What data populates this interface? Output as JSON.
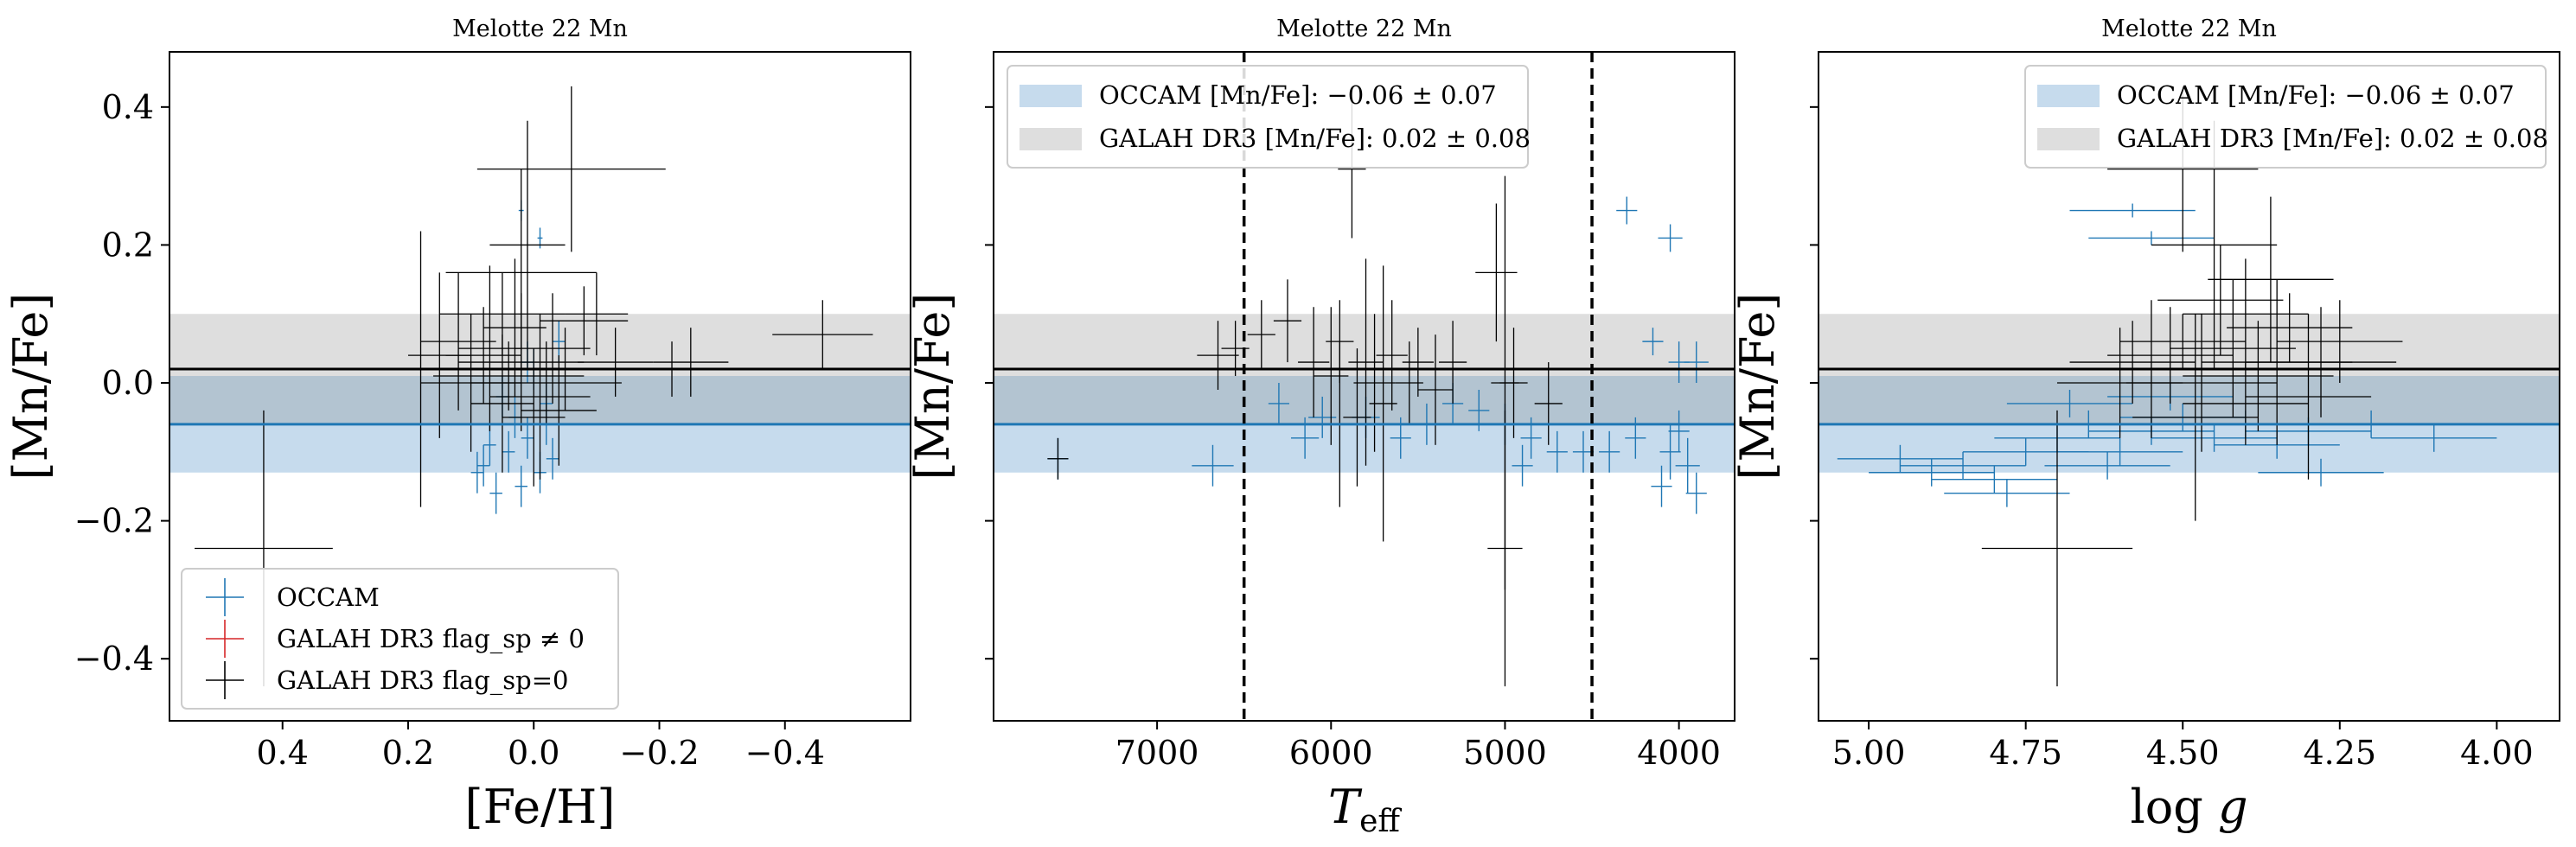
{
  "colors": {
    "occam": "#1f77b4",
    "occam_band": "#c6dbed",
    "galah_band": "#dedede",
    "overlap_band": "#b3c4d1",
    "galah_flag": "#d62728",
    "galah": "#000000"
  },
  "chart_data": [
    {
      "type": "scatter",
      "title": "Melotte 22 Mn",
      "xlabel": "[Fe/H]",
      "ylabel": "[Mn/Fe]",
      "xlim": [
        0.58,
        -0.6
      ],
      "ylim": [
        -0.49,
        0.48
      ],
      "xticks": [
        0.4,
        0.2,
        0.0,
        -0.2,
        -0.4
      ],
      "xtick_labels": [
        "0.4",
        "0.2",
        "0.0",
        "−0.2",
        "−0.4"
      ],
      "yticks": [
        0.4,
        0.2,
        0.0,
        -0.2,
        -0.4
      ],
      "ytick_labels": [
        "0.4",
        "0.2",
        "0.0",
        "−0.2",
        "−0.4"
      ],
      "yticklabels_visible": true,
      "bands": [
        {
          "name": "GALAH DR3",
          "center": 0.02,
          "err": 0.08
        },
        {
          "name": "OCCAM",
          "center": -0.06,
          "err": 0.07
        }
      ],
      "vlines": [],
      "legend": {
        "placement": "lower-left",
        "entries": [
          {
            "type": "marker",
            "color": "occam",
            "label": "OCCAM"
          },
          {
            "type": "marker",
            "color": "galah_flag",
            "label": "GALAH DR3 flag_sp ≠ 0"
          },
          {
            "type": "marker",
            "color": "galah",
            "label": "GALAH DR3 flag_sp=0"
          }
        ]
      },
      "series": [
        {
          "name": "OCCAM",
          "color": "occam",
          "points": [
            [
              0.02,
              0.25,
              0.004,
              0.015
            ],
            [
              -0.01,
              0.21,
              0.004,
              0.015
            ],
            [
              0.08,
              -0.12,
              0.01,
              0.03
            ],
            [
              0.06,
              -0.16,
              0.01,
              0.03
            ],
            [
              0.04,
              -0.1,
              0.01,
              0.03
            ],
            [
              0.03,
              -0.05,
              0.01,
              0.03
            ],
            [
              0.01,
              -0.08,
              0.01,
              0.03
            ],
            [
              -0.01,
              -0.13,
              0.01,
              0.03
            ],
            [
              -0.02,
              -0.06,
              0.01,
              0.03
            ],
            [
              -0.03,
              -0.11,
              0.01,
              0.03
            ],
            [
              0.05,
              -0.02,
              0.01,
              0.03
            ],
            [
              0.0,
              0.02,
              0.01,
              0.03
            ],
            [
              0.02,
              -0.15,
              0.01,
              0.03
            ],
            [
              -0.04,
              0.06,
              0.01,
              0.03
            ],
            [
              0.07,
              -0.09,
              0.01,
              0.03
            ],
            [
              0.09,
              -0.13,
              0.01,
              0.03
            ],
            [
              -0.02,
              -0.03,
              0.01,
              0.03
            ],
            [
              0.01,
              0.03,
              0.01,
              0.03
            ]
          ]
        },
        {
          "name": "GALAH DR3 flag_sp=0",
          "color": "galah",
          "points": [
            [
              0.43,
              -0.24,
              0.11,
              0.2
            ],
            [
              0.18,
              0.02,
              0.06,
              0.2
            ],
            [
              0.15,
              0.04,
              0.05,
              0.12
            ],
            [
              0.1,
              0.0,
              0.08,
              0.1
            ],
            [
              0.05,
              0.1,
              0.1,
              0.06
            ],
            [
              0.02,
              0.16,
              0.12,
              0.15
            ],
            [
              -0.06,
              0.31,
              0.15,
              0.12
            ],
            [
              0.01,
              0.2,
              0.06,
              0.18
            ],
            [
              0.02,
              0.03,
              0.1,
              0.1
            ],
            [
              -0.01,
              -0.02,
              0.08,
              0.12
            ],
            [
              -0.03,
              0.05,
              0.06,
              0.08
            ],
            [
              0.0,
              -0.05,
              0.05,
              0.1
            ],
            [
              -0.02,
              0.0,
              0.12,
              0.06
            ],
            [
              0.04,
              0.01,
              0.12,
              0.05
            ],
            [
              0.07,
              0.05,
              0.05,
              0.12
            ],
            [
              -0.08,
              0.09,
              0.07,
              0.05
            ],
            [
              -0.1,
              0.1,
              0.05,
              0.06
            ],
            [
              -0.13,
              0.03,
              0.06,
              0.05
            ],
            [
              -0.22,
              0.02,
              0.05,
              0.04
            ],
            [
              -0.25,
              0.03,
              0.06,
              0.05
            ],
            [
              -0.46,
              0.07,
              0.08,
              0.05
            ],
            [
              0.05,
              -0.03,
              0.05,
              0.1
            ],
            [
              -0.04,
              -0.04,
              0.06,
              0.08
            ],
            [
              0.03,
              0.08,
              0.05,
              0.1
            ],
            [
              0.08,
              0.04,
              0.06,
              0.07
            ],
            [
              0.12,
              0.06,
              0.06,
              0.1
            ],
            [
              -0.05,
              0.02,
              0.08,
              0.06
            ]
          ]
        }
      ]
    },
    {
      "type": "scatter",
      "title": "Melotte 22 Mn",
      "xlabel": "T_eff",
      "ylabel": "[Mn/Fe]",
      "xlim": [
        7940,
        3680
      ],
      "ylim": [
        -0.49,
        0.48
      ],
      "xticks": [
        7000,
        6000,
        5000,
        4000
      ],
      "xtick_labels": [
        "7000",
        "6000",
        "5000",
        "4000"
      ],
      "yticks": [
        0.4,
        0.2,
        0.0,
        -0.2,
        -0.4
      ],
      "ytick_labels": [
        "",
        "",
        "",
        "",
        ""
      ],
      "yticklabels_visible": false,
      "bands": [
        {
          "name": "GALAH DR3",
          "center": 0.02,
          "err": 0.08
        },
        {
          "name": "OCCAM",
          "center": -0.06,
          "err": 0.07
        }
      ],
      "vlines": [
        6500,
        4500
      ],
      "legend": {
        "placement": "upper-left",
        "entries": [
          {
            "type": "patch",
            "color": "occam_band",
            "label": "OCCAM [Mn/Fe]: −0.06 ± 0.07"
          },
          {
            "type": "patch",
            "color": "galah_band",
            "label": "GALAH DR3 [Mn/Fe]: 0.02 ± 0.08"
          }
        ]
      },
      "series": [
        {
          "name": "OCCAM",
          "color": "occam",
          "points": [
            [
              4300,
              0.25,
              60,
              0.02
            ],
            [
              4050,
              0.21,
              70,
              0.02
            ],
            [
              4150,
              0.06,
              60,
              0.02
            ],
            [
              4000,
              0.03,
              60,
              0.03
            ],
            [
              3900,
              0.03,
              70,
              0.03
            ],
            [
              4050,
              -0.1,
              60,
              0.04
            ],
            [
              3950,
              -0.12,
              70,
              0.04
            ],
            [
              4100,
              -0.15,
              60,
              0.03
            ],
            [
              3900,
              -0.16,
              60,
              0.03
            ],
            [
              4000,
              -0.07,
              60,
              0.03
            ],
            [
              4250,
              -0.08,
              60,
              0.03
            ],
            [
              4400,
              -0.1,
              60,
              0.03
            ],
            [
              4550,
              -0.1,
              60,
              0.03
            ],
            [
              4700,
              -0.1,
              60,
              0.03
            ],
            [
              4850,
              -0.08,
              60,
              0.03
            ],
            [
              5000,
              -0.06,
              60,
              0.03
            ],
            [
              5300,
              -0.03,
              60,
              0.03
            ],
            [
              5450,
              -0.06,
              60,
              0.03
            ],
            [
              5600,
              -0.08,
              60,
              0.03
            ],
            [
              5800,
              -0.05,
              80,
              0.03
            ],
            [
              6050,
              -0.05,
              80,
              0.03
            ],
            [
              6150,
              -0.08,
              80,
              0.03
            ],
            [
              6300,
              -0.03,
              60,
              0.03
            ],
            [
              6680,
              -0.12,
              120,
              0.03
            ],
            [
              7570,
              -0.11,
              60,
              0.03
            ],
            [
              5150,
              -0.04,
              60,
              0.03
            ],
            [
              4900,
              -0.12,
              60,
              0.03
            ]
          ]
        },
        {
          "name": "GALAH DR3 flag_sp=0",
          "color": "galah",
          "points": [
            [
              7570,
              -0.11,
              60,
              0.03
            ],
            [
              6650,
              0.04,
              120,
              0.05
            ],
            [
              6550,
              0.05,
              80,
              0.04
            ],
            [
              6400,
              0.07,
              80,
              0.05
            ],
            [
              6250,
              0.09,
              80,
              0.06
            ],
            [
              6100,
              0.03,
              90,
              0.08
            ],
            [
              5950,
              0.06,
              80,
              0.06
            ],
            [
              5880,
              0.31,
              80,
              0.1
            ],
            [
              5800,
              0.03,
              100,
              0.15
            ],
            [
              5750,
              0.0,
              120,
              0.1
            ],
            [
              5700,
              -0.03,
              80,
              0.2
            ],
            [
              5650,
              0.04,
              90,
              0.08
            ],
            [
              5550,
              0.0,
              80,
              0.06
            ],
            [
              5400,
              -0.01,
              100,
              0.08
            ],
            [
              5300,
              0.03,
              80,
              0.06
            ],
            [
              5050,
              0.16,
              120,
              0.1
            ],
            [
              5000,
              0.0,
              80,
              0.3
            ],
            [
              5000,
              -0.24,
              100,
              0.2
            ],
            [
              4950,
              0.0,
              80,
              0.08
            ],
            [
              4750,
              -0.03,
              80,
              0.06
            ],
            [
              5850,
              -0.05,
              80,
              0.1
            ],
            [
              6000,
              0.01,
              100,
              0.1
            ],
            [
              5500,
              0.03,
              90,
              0.05
            ],
            [
              5950,
              -0.06,
              90,
              0.12
            ]
          ]
        }
      ]
    },
    {
      "type": "scatter",
      "title": "Melotte 22 Mn",
      "xlabel": "log g",
      "ylabel": "[Mn/Fe]",
      "xlim": [
        5.08,
        3.9
      ],
      "ylim": [
        -0.49,
        0.48
      ],
      "xticks": [
        5.0,
        4.75,
        4.5,
        4.25,
        4.0
      ],
      "xtick_labels": [
        "5.00",
        "4.75",
        "4.50",
        "4.25",
        "4.00"
      ],
      "yticks": [
        0.4,
        0.2,
        0.0,
        -0.2,
        -0.4
      ],
      "ytick_labels": [
        "",
        "",
        "",
        "",
        ""
      ],
      "yticklabels_visible": false,
      "bands": [
        {
          "name": "GALAH DR3",
          "center": 0.02,
          "err": 0.08
        },
        {
          "name": "OCCAM",
          "center": -0.06,
          "err": 0.07
        }
      ],
      "vlines": [],
      "legend": {
        "placement": "upper-right",
        "entries": [
          {
            "type": "patch",
            "color": "occam_band",
            "label": "OCCAM [Mn/Fe]: −0.06 ± 0.07"
          },
          {
            "type": "patch",
            "color": "galah_band",
            "label": "GALAH DR3 [Mn/Fe]: 0.02 ± 0.08"
          }
        ]
      },
      "series": [
        {
          "name": "OCCAM",
          "color": "occam",
          "points": [
            [
              4.58,
              0.25,
              0.1,
              0.01
            ],
            [
              4.55,
              0.21,
              0.1,
              0.01
            ],
            [
              4.85,
              -0.12,
              0.1,
              0.02
            ],
            [
              4.8,
              -0.14,
              0.1,
              0.02
            ],
            [
              4.75,
              -0.1,
              0.1,
              0.02
            ],
            [
              4.7,
              -0.08,
              0.1,
              0.02
            ],
            [
              4.65,
              -0.06,
              0.1,
              0.02
            ],
            [
              4.6,
              -0.1,
              0.1,
              0.02
            ],
            [
              4.55,
              -0.07,
              0.1,
              0.02
            ],
            [
              4.5,
              -0.05,
              0.1,
              0.02
            ],
            [
              4.45,
              -0.08,
              0.1,
              0.02
            ],
            [
              4.4,
              -0.06,
              0.1,
              0.02
            ],
            [
              4.35,
              -0.09,
              0.1,
              0.02
            ],
            [
              4.3,
              -0.07,
              0.1,
              0.02
            ],
            [
              4.2,
              -0.06,
              0.1,
              0.02
            ],
            [
              4.1,
              -0.08,
              0.1,
              0.02
            ],
            [
              4.95,
              -0.11,
              0.1,
              0.02
            ],
            [
              4.9,
              -0.13,
              0.1,
              0.02
            ],
            [
              4.78,
              -0.16,
              0.1,
              0.02
            ],
            [
              4.68,
              -0.03,
              0.1,
              0.02
            ],
            [
              4.62,
              -0.12,
              0.1,
              0.02
            ],
            [
              4.52,
              -0.02,
              0.1,
              0.02
            ],
            [
              4.28,
              -0.13,
              0.1,
              0.02
            ]
          ]
        },
        {
          "name": "GALAH DR3 flag_sp=0",
          "color": "galah",
          "points": [
            [
              4.7,
              -0.24,
              0.12,
              0.2
            ],
            [
              4.5,
              0.31,
              0.12,
              0.12
            ],
            [
              4.45,
              0.2,
              0.1,
              0.18
            ],
            [
              4.4,
              0.1,
              0.1,
              0.08
            ],
            [
              4.35,
              0.03,
              0.12,
              0.12
            ],
            [
              4.55,
              0.02,
              0.1,
              0.1
            ],
            [
              4.6,
              0.0,
              0.1,
              0.08
            ],
            [
              4.3,
              -0.02,
              0.1,
              0.12
            ],
            [
              4.48,
              -0.05,
              0.1,
              0.15
            ],
            [
              4.42,
              0.05,
              0.1,
              0.1
            ],
            [
              4.25,
              0.06,
              0.1,
              0.06
            ],
            [
              4.38,
              0.01,
              0.12,
              0.08
            ],
            [
              4.52,
              0.04,
              0.1,
              0.07
            ],
            [
              4.47,
              0.0,
              0.12,
              0.1
            ],
            [
              4.33,
              0.08,
              0.1,
              0.05
            ],
            [
              4.4,
              -0.03,
              0.1,
              0.06
            ],
            [
              4.36,
              0.15,
              0.1,
              0.12
            ],
            [
              4.28,
              0.03,
              0.12,
              0.08
            ],
            [
              4.58,
              0.03,
              0.1,
              0.06
            ],
            [
              4.44,
              0.12,
              0.1,
              0.08
            ],
            [
              4.5,
              0.06,
              0.1,
              0.04
            ]
          ]
        }
      ]
    }
  ]
}
